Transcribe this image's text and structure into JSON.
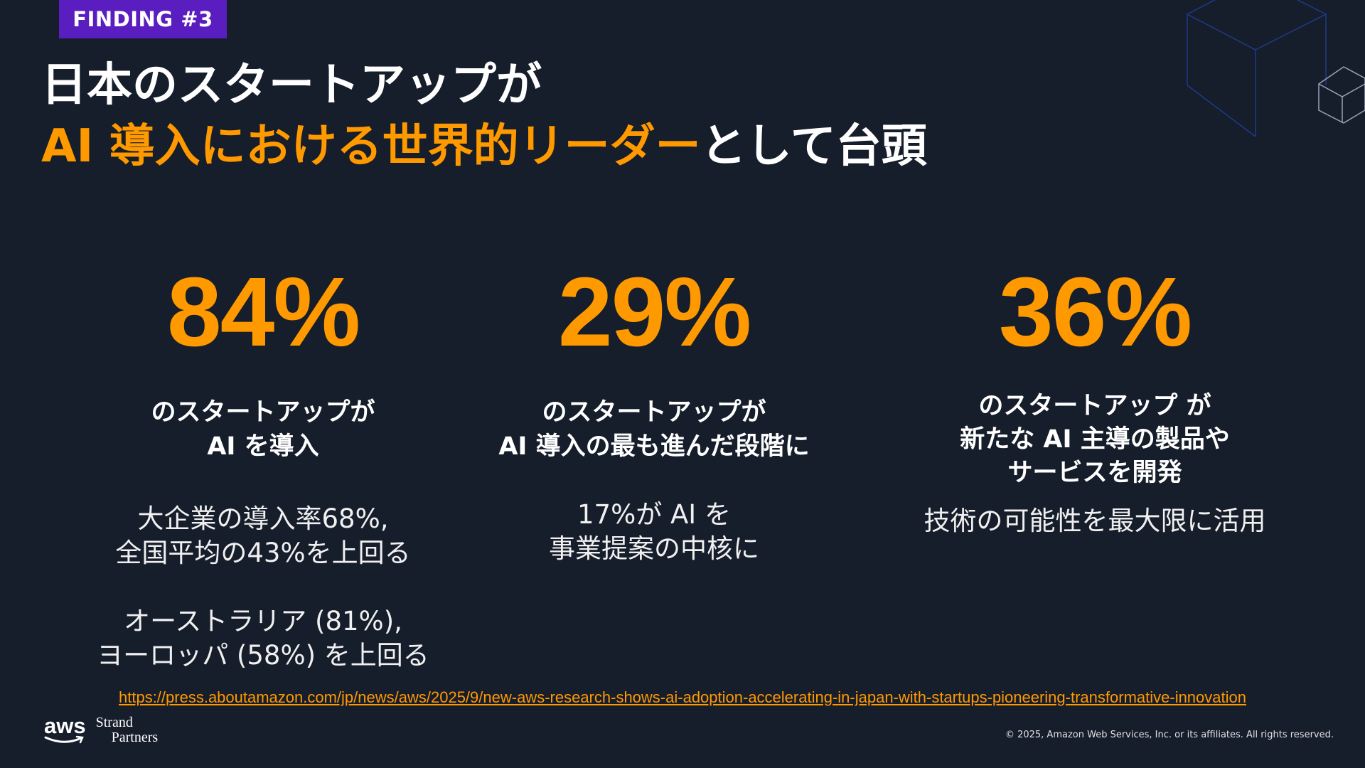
{
  "badge": "FINDING #3",
  "title": {
    "line1": "日本のスタートアップが",
    "line2_highlight": "AI 導入における世界的リーダー",
    "line2_rest": "として台頭"
  },
  "columns": [
    {
      "value": "84%",
      "heading": [
        "のスタートアップが",
        "AI を導入"
      ],
      "detail1": [
        "大企業の導入率68%,",
        "全国平均の43%を上回る"
      ],
      "detail2": [
        "オーストラリア (81%),",
        "ヨーロッパ (58%) を上回る"
      ]
    },
    {
      "value": "29%",
      "heading": [
        "のスタートアップが",
        "AI 導入の最も進んだ段階に"
      ],
      "detail1": [
        "17%が AI を",
        "事業提案の中核に"
      ]
    },
    {
      "value": "36%",
      "heading": [
        "のスタートアップ が",
        "新たな AI 主導の製品や",
        "サービスを開発"
      ],
      "detail1": [
        "技術の可能性を最大限に活用"
      ]
    }
  ],
  "source_link": "https://press.aboutamazon.com/jp/news/aws/2025/9/new-aws-research-shows-ai-adoption-accelerating-in-japan-with-startups-pioneering-transformative-innovation",
  "logo": {
    "aws": "aws",
    "partner_line1": "Strand",
    "partner_line2": "Partners"
  },
  "copyright": "© 2025, Amazon Web Services, Inc. or its affiliates. All rights reserved.",
  "colors": {
    "background": "#161d2b",
    "accent": "#ff9900",
    "badge": "#5a1ec0"
  }
}
